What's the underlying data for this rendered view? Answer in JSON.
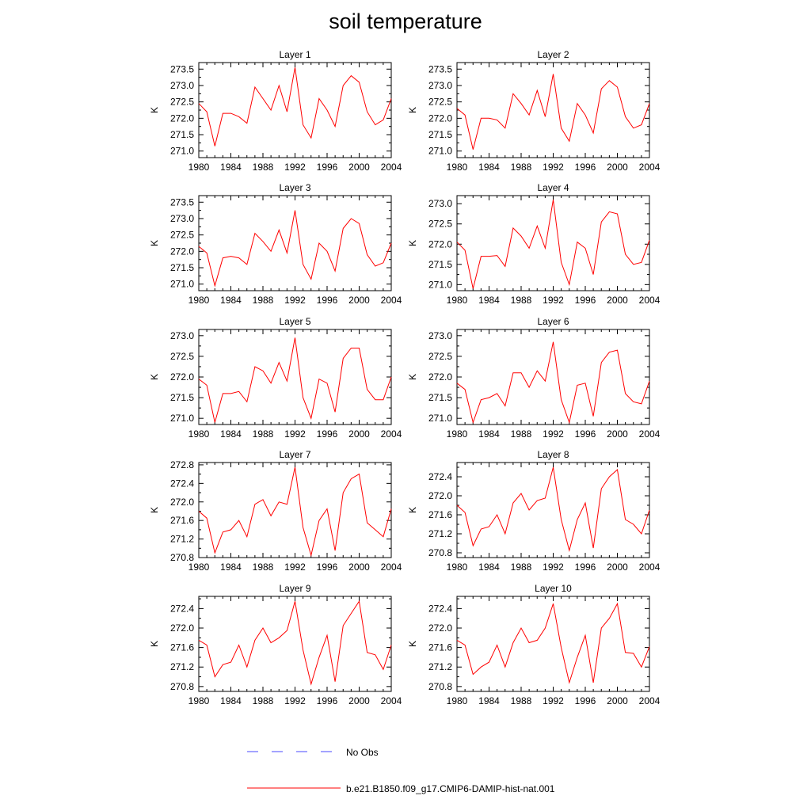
{
  "page": {
    "title": "soil temperature"
  },
  "legend": {
    "placement": "bottom-center",
    "items": [
      {
        "label": "No Obs",
        "color": "#4a4aff",
        "style": "dashed"
      },
      {
        "label": "b.e21.B1850.f09_g17.CMIP6-DAMIP-hist-nat.001",
        "color": "#ff0000",
        "style": "solid"
      }
    ]
  },
  "chart_data": [
    {
      "type": "line",
      "title": "Layer 1",
      "xlabel": "",
      "ylabel": "K",
      "xlim": [
        1980,
        2004
      ],
      "ylim": [
        270.8,
        273.7
      ],
      "x_ticks": [
        1980,
        1984,
        1988,
        1992,
        1996,
        2000,
        2004
      ],
      "y_ticks": [
        "271.0",
        "271.5",
        "272.0",
        "272.5",
        "273.0",
        "273.5"
      ],
      "series": [
        {
          "color": "#ff0000",
          "x": [
            1980,
            1981,
            1982,
            1983,
            1984,
            1985,
            1986,
            1987,
            1988,
            1989,
            1990,
            1991,
            1992,
            1993,
            1994,
            1995,
            1996,
            1997,
            1998,
            1999,
            2000,
            2001,
            2002,
            2003,
            2004
          ],
          "values": [
            272.45,
            272.2,
            271.15,
            272.15,
            272.15,
            272.05,
            271.85,
            272.95,
            272.6,
            272.25,
            273.0,
            272.2,
            273.55,
            271.8,
            271.4,
            272.6,
            272.25,
            271.75,
            273.0,
            273.3,
            273.1,
            272.2,
            271.8,
            271.95,
            272.6
          ]
        }
      ]
    },
    {
      "type": "line",
      "title": "Layer 2",
      "xlabel": "",
      "ylabel": "K",
      "xlim": [
        1980,
        2004
      ],
      "ylim": [
        270.8,
        273.7
      ],
      "x_ticks": [
        1980,
        1984,
        1988,
        1992,
        1996,
        2000,
        2004
      ],
      "y_ticks": [
        "271.0",
        "271.5",
        "272.0",
        "272.5",
        "273.0",
        "273.5"
      ],
      "series": [
        {
          "color": "#ff0000",
          "x": [
            1980,
            1981,
            1982,
            1983,
            1984,
            1985,
            1986,
            1987,
            1988,
            1989,
            1990,
            1991,
            1992,
            1993,
            1994,
            1995,
            1996,
            1997,
            1998,
            1999,
            2000,
            2001,
            2002,
            2003,
            2004
          ],
          "values": [
            272.3,
            272.1,
            271.05,
            272.0,
            272.0,
            271.95,
            271.7,
            272.75,
            272.45,
            272.1,
            272.85,
            272.05,
            273.35,
            271.7,
            271.3,
            272.45,
            272.1,
            271.55,
            272.9,
            273.15,
            272.95,
            272.05,
            271.7,
            271.8,
            272.45
          ]
        }
      ]
    },
    {
      "type": "line",
      "title": "Layer 3",
      "xlabel": "",
      "ylabel": "K",
      "xlim": [
        1980,
        2004
      ],
      "ylim": [
        270.8,
        273.7
      ],
      "x_ticks": [
        1980,
        1984,
        1988,
        1992,
        1996,
        2000,
        2004
      ],
      "y_ticks": [
        "271.0",
        "271.5",
        "272.0",
        "272.5",
        "273.0",
        "273.5"
      ],
      "series": [
        {
          "color": "#ff0000",
          "x": [
            1980,
            1981,
            1982,
            1983,
            1984,
            1985,
            1986,
            1987,
            1988,
            1989,
            1990,
            1991,
            1992,
            1993,
            1994,
            1995,
            1996,
            1997,
            1998,
            1999,
            2000,
            2001,
            2002,
            2003,
            2004
          ],
          "values": [
            272.15,
            271.95,
            270.95,
            271.8,
            271.85,
            271.8,
            271.6,
            272.55,
            272.3,
            272.0,
            272.65,
            271.95,
            273.25,
            271.6,
            271.15,
            272.25,
            272.0,
            271.4,
            272.7,
            273.0,
            272.85,
            271.9,
            271.55,
            271.65,
            272.25
          ]
        }
      ]
    },
    {
      "type": "line",
      "title": "Layer 4",
      "xlabel": "",
      "ylabel": "K",
      "xlim": [
        1980,
        2004
      ],
      "ylim": [
        270.85,
        273.2
      ],
      "x_ticks": [
        1980,
        1984,
        1988,
        1992,
        1996,
        2000,
        2004
      ],
      "y_ticks": [
        "271.0",
        "271.5",
        "272.0",
        "272.5",
        "273.0"
      ],
      "series": [
        {
          "color": "#ff0000",
          "x": [
            1980,
            1981,
            1982,
            1983,
            1984,
            1985,
            1986,
            1987,
            1988,
            1989,
            1990,
            1991,
            1992,
            1993,
            1994,
            1995,
            1996,
            1997,
            1998,
            1999,
            2000,
            2001,
            2002,
            2003,
            2004
          ],
          "values": [
            272.05,
            271.85,
            270.9,
            271.7,
            271.7,
            271.72,
            271.45,
            272.4,
            272.2,
            271.9,
            272.45,
            271.9,
            273.1,
            271.55,
            271.0,
            272.05,
            271.9,
            271.25,
            272.55,
            272.8,
            272.75,
            271.75,
            271.5,
            271.55,
            272.1
          ]
        }
      ]
    },
    {
      "type": "line",
      "title": "Layer 5",
      "xlabel": "",
      "ylabel": "K",
      "xlim": [
        1980,
        2004
      ],
      "ylim": [
        270.85,
        273.15
      ],
      "x_ticks": [
        1980,
        1984,
        1988,
        1992,
        1996,
        2000,
        2004
      ],
      "y_ticks": [
        "271.0",
        "271.5",
        "272.0",
        "272.5",
        "273.0"
      ],
      "series": [
        {
          "color": "#ff0000",
          "x": [
            1980,
            1981,
            1982,
            1983,
            1984,
            1985,
            1986,
            1987,
            1988,
            1989,
            1990,
            1991,
            1992,
            1993,
            1994,
            1995,
            1996,
            1997,
            1998,
            1999,
            2000,
            2001,
            2002,
            2003,
            2004
          ],
          "values": [
            271.95,
            271.8,
            270.9,
            271.6,
            271.6,
            271.65,
            271.4,
            272.25,
            272.15,
            271.85,
            272.35,
            271.9,
            272.95,
            271.5,
            271.0,
            271.95,
            271.85,
            271.15,
            272.45,
            272.7,
            272.7,
            271.7,
            271.45,
            271.45,
            272.0
          ]
        }
      ]
    },
    {
      "type": "line",
      "title": "Layer 6",
      "xlabel": "",
      "ylabel": "K",
      "xlim": [
        1980,
        2004
      ],
      "ylim": [
        270.85,
        273.15
      ],
      "x_ticks": [
        1980,
        1984,
        1988,
        1992,
        1996,
        2000,
        2004
      ],
      "y_ticks": [
        "271.0",
        "271.5",
        "272.0",
        "272.5",
        "273.0"
      ],
      "series": [
        {
          "color": "#ff0000",
          "x": [
            1980,
            1981,
            1982,
            1983,
            1984,
            1985,
            1986,
            1987,
            1988,
            1989,
            1990,
            1991,
            1992,
            1993,
            1994,
            1995,
            1996,
            1997,
            1998,
            1999,
            2000,
            2001,
            2002,
            2003,
            2004
          ],
          "values": [
            271.85,
            271.7,
            270.9,
            271.45,
            271.5,
            271.6,
            271.3,
            272.1,
            272.1,
            271.75,
            272.15,
            271.9,
            272.85,
            271.45,
            270.9,
            271.8,
            271.85,
            271.05,
            272.35,
            272.6,
            272.65,
            271.6,
            271.4,
            271.35,
            271.9
          ]
        }
      ]
    },
    {
      "type": "line",
      "title": "Layer 7",
      "xlabel": "",
      "ylabel": "K",
      "xlim": [
        1980,
        2004
      ],
      "ylim": [
        270.8,
        272.85
      ],
      "x_ticks": [
        1980,
        1984,
        1988,
        1992,
        1996,
        2000,
        2004
      ],
      "y_ticks": [
        "270.8",
        "271.2",
        "271.6",
        "272.0",
        "272.4",
        "272.8"
      ],
      "series": [
        {
          "color": "#ff0000",
          "x": [
            1980,
            1981,
            1982,
            1983,
            1984,
            1985,
            1986,
            1987,
            1988,
            1989,
            1990,
            1991,
            1992,
            1993,
            1994,
            1995,
            1996,
            1997,
            1998,
            1999,
            2000,
            2001,
            2002,
            2003,
            2004
          ],
          "values": [
            271.8,
            271.65,
            270.9,
            271.35,
            271.4,
            271.6,
            271.25,
            271.95,
            272.05,
            271.7,
            272.0,
            271.95,
            272.75,
            271.45,
            270.85,
            271.6,
            271.85,
            270.95,
            272.2,
            272.5,
            272.6,
            271.55,
            271.4,
            271.25,
            271.85
          ]
        }
      ]
    },
    {
      "type": "line",
      "title": "Layer 8",
      "xlabel": "",
      "ylabel": "K",
      "xlim": [
        1980,
        2004
      ],
      "ylim": [
        270.7,
        272.7
      ],
      "x_ticks": [
        1980,
        1984,
        1988,
        1992,
        1996,
        2000,
        2004
      ],
      "y_ticks": [
        "270.8",
        "271.2",
        "271.6",
        "272.0",
        "272.4"
      ],
      "series": [
        {
          "color": "#ff0000",
          "x": [
            1980,
            1981,
            1982,
            1983,
            1984,
            1985,
            1986,
            1987,
            1988,
            1989,
            1990,
            1991,
            1992,
            1993,
            1994,
            1995,
            1996,
            1997,
            1998,
            1999,
            2000,
            2001,
            2002,
            2003,
            2004
          ],
          "values": [
            271.8,
            271.65,
            270.95,
            271.3,
            271.35,
            271.6,
            271.2,
            271.85,
            272.05,
            271.7,
            271.9,
            271.95,
            272.6,
            271.5,
            270.85,
            271.5,
            271.85,
            270.9,
            272.15,
            272.4,
            272.55,
            271.5,
            271.4,
            271.2,
            271.7
          ]
        }
      ]
    },
    {
      "type": "line",
      "title": "Layer 9",
      "xlabel": "",
      "ylabel": "K",
      "xlim": [
        1980,
        2004
      ],
      "ylim": [
        270.7,
        272.65
      ],
      "x_ticks": [
        1980,
        1984,
        1988,
        1992,
        1996,
        2000,
        2004
      ],
      "y_ticks": [
        "270.8",
        "271.2",
        "271.6",
        "272.0",
        "272.4"
      ],
      "series": [
        {
          "color": "#ff0000",
          "x": [
            1980,
            1981,
            1982,
            1983,
            1984,
            1985,
            1986,
            1987,
            1988,
            1989,
            1990,
            1991,
            1992,
            1993,
            1994,
            1995,
            1996,
            1997,
            1998,
            1999,
            2000,
            2001,
            2002,
            2003,
            2004
          ],
          "values": [
            271.75,
            271.65,
            271.0,
            271.25,
            271.3,
            271.65,
            271.2,
            271.75,
            272.0,
            271.7,
            271.8,
            271.95,
            272.55,
            271.55,
            270.85,
            271.4,
            271.85,
            270.9,
            272.05,
            272.3,
            272.55,
            271.5,
            271.45,
            271.15,
            271.65
          ]
        }
      ]
    },
    {
      "type": "line",
      "title": "Layer 10",
      "xlabel": "",
      "ylabel": "K",
      "xlim": [
        1980,
        2004
      ],
      "ylim": [
        270.7,
        272.65
      ],
      "x_ticks": [
        1980,
        1984,
        1988,
        1992,
        1996,
        2000,
        2004
      ],
      "y_ticks": [
        "270.8",
        "271.2",
        "271.6",
        "272.0",
        "272.4"
      ],
      "series": [
        {
          "color": "#ff0000",
          "x": [
            1980,
            1981,
            1982,
            1983,
            1984,
            1985,
            1986,
            1987,
            1988,
            1989,
            1990,
            1991,
            1992,
            1993,
            1994,
            1995,
            1996,
            1997,
            1998,
            1999,
            2000,
            2001,
            2002,
            2003,
            2004
          ],
          "values": [
            271.75,
            271.65,
            271.05,
            271.2,
            271.3,
            271.65,
            271.2,
            271.7,
            272.0,
            271.7,
            271.75,
            272.0,
            272.5,
            271.6,
            270.88,
            271.4,
            271.85,
            270.88,
            272.0,
            272.2,
            272.5,
            271.5,
            271.48,
            271.2,
            271.62
          ]
        }
      ]
    }
  ]
}
